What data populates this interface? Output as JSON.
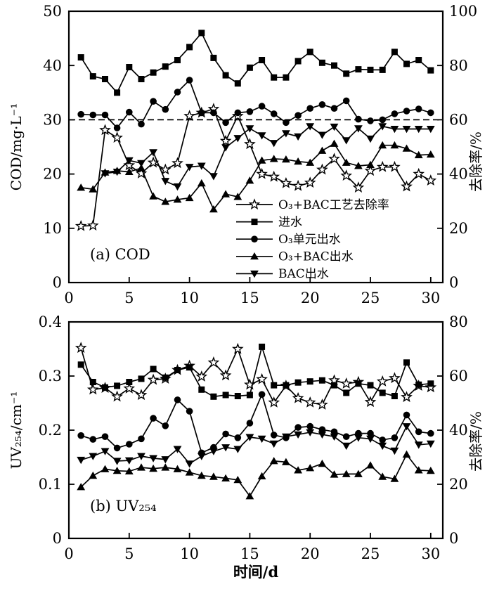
{
  "figure": {
    "background": "#ffffff",
    "foreground": "#000000",
    "x_title": "时间/d"
  },
  "chart_data": [
    {
      "id": "a",
      "type": "line",
      "panel_label": "(a) COD",
      "xlabel": "",
      "x_ticks": [
        0,
        5,
        10,
        15,
        20,
        25,
        30
      ],
      "xlim": [
        0,
        31
      ],
      "left_axis": {
        "label": "COD/mg·L⁻¹",
        "lim": [
          0,
          50
        ],
        "ticks": [
          0,
          10,
          20,
          30,
          40,
          50
        ]
      },
      "right_axis": {
        "label": "去除率/%",
        "lim": [
          0,
          100
        ],
        "ticks": [
          0,
          20,
          40,
          60,
          80,
          100
        ]
      },
      "grid": false,
      "dashed_hline": {
        "axis": "left",
        "value": 30
      },
      "legend_position": "inside-bottom-center",
      "series": [
        {
          "name": "O₃+BAC工艺去除率",
          "marker": "star",
          "axis": "right",
          "x": [
            1,
            2,
            3,
            4,
            5,
            6,
            7,
            8,
            9,
            10,
            11,
            12,
            13,
            14,
            15,
            16,
            17,
            18,
            19,
            20,
            21,
            22,
            23,
            24,
            25,
            26,
            27,
            28,
            29,
            30
          ],
          "y": [
            20.8,
            21,
            56.2,
            53.4,
            43.2,
            40.2,
            44.2,
            41.6,
            44,
            61.4,
            62.6,
            64,
            52.2,
            61.4,
            51,
            40,
            39,
            36.6,
            35.6,
            36.8,
            41.6,
            45.6,
            39.4,
            35,
            41.2,
            42.6,
            42.6,
            35.4,
            40,
            37.6
          ]
        },
        {
          "name": "进水",
          "marker": "square",
          "axis": "left",
          "x": [
            1,
            2,
            3,
            4,
            5,
            6,
            7,
            8,
            9,
            10,
            11,
            12,
            13,
            14,
            15,
            16,
            17,
            18,
            19,
            20,
            21,
            22,
            23,
            24,
            25,
            26,
            27,
            28,
            29,
            30
          ],
          "y": [
            41.5,
            38,
            37.5,
            35,
            39.7,
            37.5,
            38.7,
            39.8,
            41,
            43.4,
            46,
            41.4,
            38.2,
            36.7,
            39.6,
            41,
            37.8,
            37.8,
            40.8,
            42.5,
            40.5,
            40,
            38.5,
            39.3,
            39.2,
            39.2,
            42.5,
            40.3,
            41,
            39.1
          ]
        },
        {
          "name": "O₃单元出水",
          "marker": "circle",
          "axis": "left",
          "x": [
            1,
            2,
            3,
            4,
            5,
            6,
            7,
            8,
            9,
            10,
            11,
            12,
            13,
            14,
            15,
            16,
            17,
            18,
            19,
            20,
            21,
            22,
            23,
            24,
            25,
            26,
            27,
            28,
            29,
            30
          ],
          "y": [
            31,
            30.9,
            30.9,
            28.5,
            31.4,
            29.2,
            33.4,
            31.9,
            35.1,
            37.3,
            31.3,
            31.3,
            29.5,
            31.3,
            31.5,
            32.5,
            31.1,
            29.5,
            30.8,
            32.1,
            32.8,
            32.1,
            33.5,
            30.1,
            29.8,
            30,
            31.1,
            31.6,
            32,
            31.3
          ]
        },
        {
          "name": "O₃+BAC出水",
          "marker": "triangle-up",
          "axis": "left",
          "x": [
            1,
            2,
            3,
            4,
            5,
            6,
            7,
            8,
            9,
            10,
            11,
            12,
            13,
            14,
            15,
            16,
            17,
            18,
            19,
            20,
            21,
            22,
            23,
            24,
            25,
            26,
            27,
            28,
            29,
            30
          ],
          "y": [
            17.5,
            17.2,
            20.3,
            20.6,
            20.4,
            21.1,
            15.9,
            14.9,
            15.3,
            15.6,
            18.3,
            13.5,
            16.3,
            15.8,
            18.8,
            22.5,
            22.8,
            22.7,
            22.3,
            22.1,
            24.3,
            25.6,
            22.1,
            21.5,
            21.7,
            25.3,
            25.3,
            24.7,
            23.5,
            23.6
          ]
        },
        {
          "name": "BAC出水",
          "marker": "triangle-down",
          "axis": "left",
          "x": [
            3,
            4,
            5,
            6,
            7,
            8,
            9,
            10,
            11,
            12,
            13,
            14,
            15,
            16,
            17,
            18,
            19,
            20,
            21,
            22,
            23,
            24,
            25,
            26,
            27,
            28,
            29,
            30
          ],
          "y": [
            20.1,
            20.4,
            22.5,
            22,
            24,
            18.7,
            17.7,
            21.3,
            21.5,
            19.6,
            24.9,
            26.6,
            28.4,
            27.1,
            25.7,
            27.5,
            26.9,
            28.8,
            27.2,
            28.7,
            26.2,
            28.4,
            26.5,
            28.8,
            28.3,
            28.3,
            28.3,
            28.3
          ]
        }
      ]
    },
    {
      "id": "b",
      "type": "line",
      "panel_label": "(b) UV₂₅₄",
      "xlabel": "时间/d",
      "x_ticks": [
        0,
        5,
        10,
        15,
        20,
        25,
        30
      ],
      "xlim": [
        0,
        31
      ],
      "left_axis": {
        "label": "UV₂₅₄/cm⁻¹",
        "lim": [
          0,
          0.4
        ],
        "ticks": [
          0,
          0.1,
          0.2,
          0.3,
          0.4
        ]
      },
      "right_axis": {
        "label": "去除率/%",
        "lim": [
          0,
          80
        ],
        "ticks": [
          0,
          20,
          40,
          60,
          80
        ]
      },
      "grid": false,
      "series": [
        {
          "name": "O₃+BAC工艺去除率",
          "marker": "star",
          "axis": "right",
          "x": [
            1,
            2,
            3,
            4,
            5,
            6,
            7,
            8,
            9,
            10,
            11,
            12,
            13,
            14,
            15,
            16,
            17,
            18,
            19,
            20,
            21,
            22,
            23,
            24,
            25,
            26,
            27,
            28,
            29,
            30
          ],
          "y": [
            70.4,
            55,
            55.6,
            52.4,
            55.4,
            53,
            58.6,
            59,
            62.2,
            63.8,
            59.8,
            65,
            60.2,
            70,
            56.8,
            58.8,
            50.2,
            56.4,
            51.8,
            50.2,
            49.4,
            58.4,
            57.2,
            57.8,
            50.4,
            58,
            59.2,
            52.2,
            56.4,
            55.8
          ]
        },
        {
          "name": "进水",
          "marker": "square",
          "axis": "left",
          "x": [
            1,
            2,
            3,
            4,
            5,
            6,
            7,
            8,
            9,
            10,
            11,
            12,
            13,
            14,
            15,
            16,
            17,
            18,
            19,
            20,
            21,
            22,
            23,
            24,
            25,
            26,
            27,
            28,
            29,
            30
          ],
          "y": [
            0.321,
            0.289,
            0.279,
            0.282,
            0.289,
            0.295,
            0.313,
            0.297,
            0.311,
            0.316,
            0.275,
            0.262,
            0.265,
            0.263,
            0.265,
            0.354,
            0.283,
            0.283,
            0.288,
            0.29,
            0.292,
            0.283,
            0.269,
            0.286,
            0.283,
            0.269,
            0.263,
            0.325,
            0.284,
            0.286
          ]
        },
        {
          "name": "O₃单元出水",
          "marker": "circle",
          "axis": "left",
          "x": [
            1,
            2,
            3,
            4,
            5,
            6,
            7,
            8,
            9,
            10,
            11,
            12,
            13,
            14,
            15,
            16,
            17,
            18,
            19,
            20,
            21,
            22,
            23,
            24,
            25,
            26,
            27,
            28,
            29,
            30
          ],
          "y": [
            0.19,
            0.183,
            0.188,
            0.167,
            0.174,
            0.184,
            0.222,
            0.208,
            0.256,
            0.235,
            0.158,
            0.168,
            0.193,
            0.186,
            0.213,
            0.266,
            0.191,
            0.186,
            0.205,
            0.207,
            0.201,
            0.197,
            0.188,
            0.194,
            0.194,
            0.182,
            0.186,
            0.228,
            0.197,
            0.194
          ]
        },
        {
          "name": "O₃+BAC出水",
          "marker": "triangle-up",
          "axis": "left",
          "x": [
            1,
            2,
            3,
            4,
            5,
            6,
            7,
            8,
            9,
            10,
            11,
            12,
            13,
            14,
            15,
            16,
            17,
            18,
            19,
            20,
            21,
            22,
            23,
            24,
            25,
            26,
            27,
            28,
            29,
            30
          ],
          "y": [
            0.095,
            0.116,
            0.128,
            0.125,
            0.124,
            0.131,
            0.129,
            0.131,
            0.128,
            0.122,
            0.116,
            0.114,
            0.111,
            0.108,
            0.078,
            0.115,
            0.143,
            0.141,
            0.126,
            0.13,
            0.138,
            0.118,
            0.119,
            0.119,
            0.135,
            0.114,
            0.11,
            0.155,
            0.126,
            0.125
          ]
        },
        {
          "name": "BAC出水",
          "marker": "triangle-down",
          "axis": "left",
          "x": [
            1,
            2,
            3,
            4,
            5,
            6,
            7,
            8,
            9,
            10,
            11,
            12,
            13,
            14,
            15,
            16,
            17,
            18,
            19,
            20,
            21,
            22,
            23,
            24,
            25,
            26,
            27,
            28,
            29,
            30
          ],
          "y": [
            0.145,
            0.152,
            0.161,
            0.143,
            0.144,
            0.152,
            0.148,
            0.146,
            0.165,
            0.138,
            0.152,
            0.161,
            0.168,
            0.165,
            0.187,
            0.184,
            0.175,
            0.188,
            0.192,
            0.196,
            0.192,
            0.188,
            0.171,
            0.186,
            0.184,
            0.171,
            0.162,
            0.207,
            0.173,
            0.175
          ]
        }
      ]
    }
  ]
}
